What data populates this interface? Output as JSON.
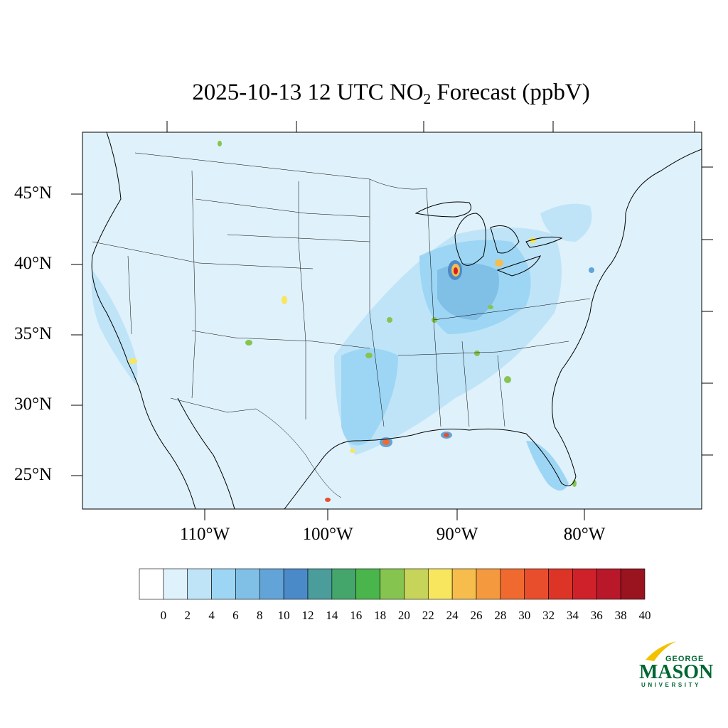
{
  "title_text": "2025-10-13 12 UTC NO",
  "title_subscript": "2",
  "title_tail": " Forecast (ppbV)",
  "lat_labels": [
    "45°N",
    "40°N",
    "35°N",
    "30°N",
    "25°N"
  ],
  "lon_labels": [
    "110°W",
    "100°W",
    "90°W",
    "80°W"
  ],
  "colorbar": {
    "tick_labels": [
      "0",
      "2",
      "4",
      "6",
      "8",
      "10",
      "12",
      "14",
      "16",
      "18",
      "20",
      "22",
      "24",
      "26",
      "28",
      "30",
      "32",
      "34",
      "36",
      "38",
      "40"
    ],
    "colors": [
      "#ffffff",
      "#dff1fb",
      "#bfe4f8",
      "#9dd6f4",
      "#80bfe6",
      "#62a4d8",
      "#4a8ac8",
      "#4a9d9b",
      "#45a66c",
      "#4ab54a",
      "#86c450",
      "#c6d55a",
      "#f7e65e",
      "#f6bd4c",
      "#f4993e",
      "#f06a30",
      "#e84e2c",
      "#dc3527",
      "#cf212a",
      "#b8182a",
      "#9a1420"
    ]
  },
  "map": {
    "background_color": "#dff1fb"
  },
  "logo": {
    "top": "GEORGE",
    "main": "MASON",
    "bottom": "UNIVERSITY",
    "color": "#006633",
    "accent": "#f2c200"
  }
}
